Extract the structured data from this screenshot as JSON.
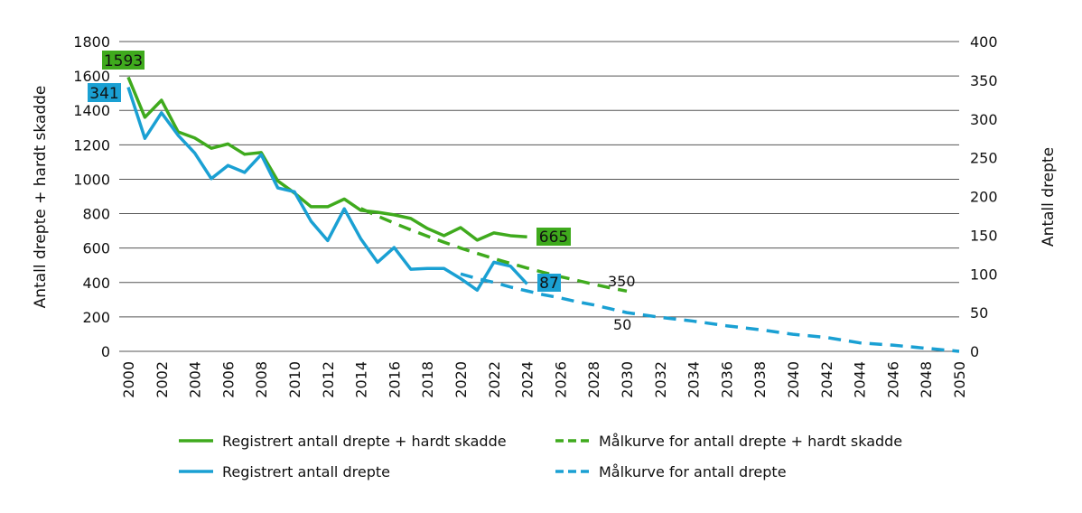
{
  "chart_data": {
    "type": "line",
    "title": "",
    "ylabel_left": "Antall drepte + hardt skadde",
    "ylabel_right": "Antall drepte",
    "ylim_left": [
      0,
      1800
    ],
    "ylim_right": [
      0,
      400
    ],
    "yticks_left": [
      0,
      200,
      400,
      600,
      800,
      1000,
      1200,
      1400,
      1600,
      1800
    ],
    "yticks_right": [
      0,
      50,
      100,
      150,
      200,
      250,
      300,
      350,
      400
    ],
    "xlim": [
      2000,
      2050
    ],
    "xticks": [
      2000,
      2002,
      2004,
      2006,
      2008,
      2010,
      2012,
      2014,
      2016,
      2018,
      2020,
      2022,
      2024,
      2026,
      2028,
      2030,
      2032,
      2034,
      2036,
      2038,
      2040,
      2042,
      2044,
      2046,
      2048,
      2050
    ],
    "grid": true,
    "legend_position": "bottom",
    "series": [
      {
        "name": "Registrert antall drepte + hardt skadde",
        "axis": "left",
        "style": "solid",
        "color": "#3faa1d",
        "x": [
          2000,
          2001,
          2002,
          2003,
          2004,
          2005,
          2006,
          2007,
          2008,
          2009,
          2010,
          2011,
          2012,
          2013,
          2014,
          2015,
          2016,
          2017,
          2018,
          2019,
          2020,
          2021,
          2022,
          2023,
          2024
        ],
        "y": [
          1593,
          1360,
          1459,
          1275,
          1240,
          1180,
          1205,
          1145,
          1155,
          990,
          920,
          840,
          840,
          885,
          819,
          808,
          793,
          772,
          714,
          672,
          719,
          646,
          688,
          672,
          665
        ]
      },
      {
        "name": "Registrert antall drepte",
        "axis": "right",
        "style": "solid",
        "color": "#1aa0d3",
        "x": [
          2000,
          2001,
          2002,
          2003,
          2004,
          2005,
          2006,
          2007,
          2008,
          2009,
          2010,
          2011,
          2012,
          2013,
          2014,
          2015,
          2016,
          2017,
          2018,
          2019,
          2020,
          2021,
          2022,
          2023,
          2024
        ],
        "y": [
          341,
          275,
          308,
          279,
          256,
          223,
          240,
          231,
          254,
          211,
          206,
          168,
          143,
          184,
          145,
          115,
          134,
          106,
          107,
          107,
          94,
          79,
          115,
          110,
          87
        ]
      },
      {
        "name": "Målkurve for antall drepte + hardt skadde",
        "axis": "left",
        "style": "dashed",
        "color": "#3faa1d",
        "x": [
          2014,
          2015,
          2016,
          2017,
          2018,
          2019,
          2020,
          2021,
          2022,
          2023,
          2024,
          2025,
          2026,
          2027,
          2028,
          2029,
          2030
        ],
        "y": [
          830,
          786,
          745,
          706,
          669,
          634,
          600,
          569,
          539,
          511,
          484,
          458,
          434,
          412,
          390,
          369,
          350
        ]
      },
      {
        "name": "Målkurve for antall drepte",
        "axis": "right",
        "style": "dashed",
        "color": "#1aa0d3",
        "x": [
          2020,
          2021,
          2022,
          2023,
          2024,
          2025,
          2026,
          2027,
          2028,
          2029,
          2030,
          2032,
          2034,
          2036,
          2038,
          2040,
          2042,
          2044,
          2046,
          2048,
          2050
        ],
        "y": [
          100,
          94,
          89,
          83,
          78,
          73,
          69,
          64,
          60,
          55,
          50,
          44,
          39,
          33,
          28,
          22,
          18,
          11,
          8,
          4,
          0
        ]
      }
    ],
    "annotations": [
      {
        "text": "1593",
        "boxed": true,
        "color": "#3faa1d"
      },
      {
        "text": "341",
        "boxed": true,
        "color": "#1aa0d3"
      },
      {
        "text": "665",
        "boxed": true,
        "color": "#3faa1d"
      },
      {
        "text": "87",
        "boxed": true,
        "color": "#1aa0d3"
      },
      {
        "text": "350",
        "boxed": false
      },
      {
        "text": "50",
        "boxed": false
      }
    ]
  }
}
